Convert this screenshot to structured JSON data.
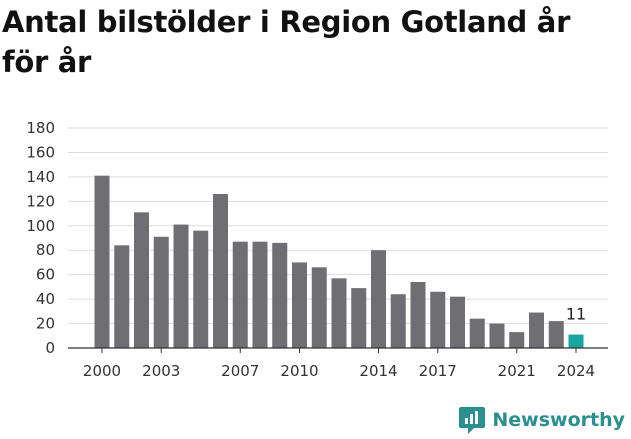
{
  "title": "Antal bilstölder i Region Gotland år för år",
  "brand": {
    "name": "Newsworthy",
    "icon": "newsworthy-logo-icon",
    "color": "#2a8f8f"
  },
  "colors": {
    "bar": "#6f6e73",
    "highlight": "#1aa6a0",
    "grid": "#dddddd",
    "axis": "#333333"
  },
  "chart_data": {
    "type": "bar",
    "title": "Antal bilstölder i Region Gotland år för år",
    "xlabel": "",
    "ylabel": "",
    "ylim": [
      0,
      180
    ],
    "yticks": [
      0,
      20,
      40,
      60,
      80,
      100,
      120,
      140,
      160,
      180
    ],
    "xtick_labels": [
      "2000",
      "2003",
      "2007",
      "2010",
      "2014",
      "2017",
      "2021",
      "2024"
    ],
    "grid": true,
    "categories": [
      2000,
      2001,
      2002,
      2003,
      2004,
      2005,
      2006,
      2007,
      2008,
      2009,
      2010,
      2011,
      2012,
      2013,
      2014,
      2015,
      2016,
      2017,
      2018,
      2019,
      2020,
      2021,
      2022,
      2023,
      2024
    ],
    "values": [
      141,
      84,
      111,
      91,
      101,
      96,
      126,
      87,
      87,
      86,
      70,
      66,
      57,
      49,
      80,
      44,
      54,
      46,
      42,
      24,
      20,
      13,
      29,
      22,
      11
    ],
    "highlight_category": 2024,
    "data_labels": [
      {
        "category": 2024,
        "text": "11"
      }
    ]
  }
}
